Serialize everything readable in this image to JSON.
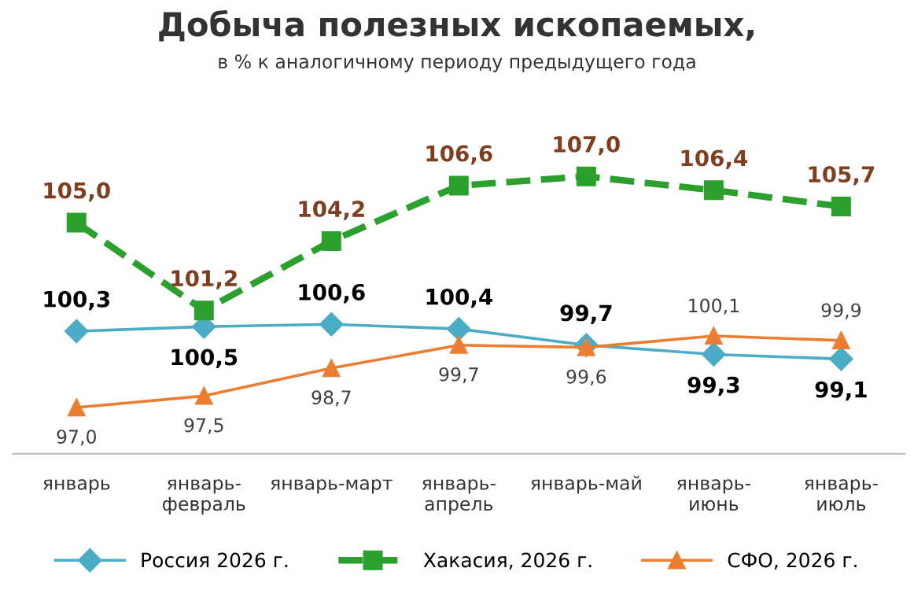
{
  "chart_data": {
    "type": "line",
    "title": "Добыча полезных ископаемых,",
    "subtitle": "в % к аналогичному периоду предыдущего года",
    "categories": [
      "январь",
      "январь-\nфевраль",
      "январь-март",
      "январь-\nапрель",
      "январь-май",
      "январь-\nиюнь",
      "январь-\nиюль"
    ],
    "series": [
      {
        "name": "Россия 2026 г.",
        "color": "#4bacc6",
        "marker": "diamond",
        "line_style": "solid",
        "values": [
          100.3,
          100.5,
          100.6,
          100.4,
          99.7,
          99.3,
          99.1
        ],
        "value_labels": [
          "100,3",
          "100,5",
          "100,6",
          "100,4",
          "99,7",
          "99,3",
          "99,1"
        ]
      },
      {
        "name": "Хакасия, 2026 г.",
        "color": "#2ca02c",
        "marker": "square",
        "line_style": "dashed",
        "values": [
          105.0,
          101.2,
          104.2,
          106.6,
          107.0,
          106.4,
          105.7
        ],
        "value_labels": [
          "105,0",
          "101,2",
          "104,2",
          "106,6",
          "107,0",
          "106,4",
          "105,7"
        ]
      },
      {
        "name": "СФО, 2026 г.",
        "color": "#ed7d31",
        "marker": "triangle",
        "line_style": "solid",
        "values": [
          97.0,
          97.5,
          98.7,
          99.7,
          99.6,
          100.1,
          99.9
        ],
        "value_labels": [
          "97,0",
          "97,5",
          "98,7",
          "99,7",
          "99,6",
          "100,1",
          "99,9"
        ]
      }
    ],
    "legend": "bottom",
    "grid": false
  }
}
